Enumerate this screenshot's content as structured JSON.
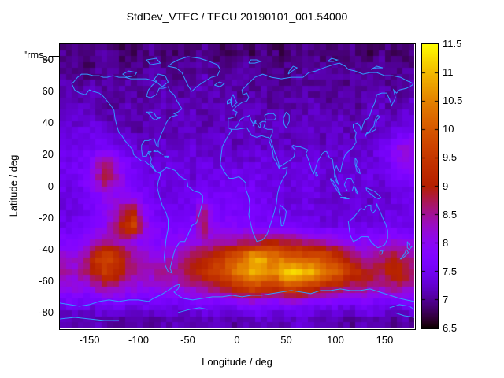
{
  "title": "StdDev_VTEC / TECU 20190101_001.54000",
  "key_label": "\"rms_",
  "axes": {
    "x": {
      "label": "Longitude / deg",
      "range": [
        -180,
        180
      ],
      "ticks": [
        -150,
        -100,
        -50,
        0,
        50,
        100,
        150
      ]
    },
    "y": {
      "label": "Latitude / deg",
      "range": [
        -90,
        90
      ],
      "ticks": [
        80,
        60,
        40,
        20,
        0,
        -20,
        -40,
        -60,
        -80
      ]
    }
  },
  "colorbar": {
    "range": [
      6.5,
      11.5
    ],
    "ticks": [
      6.5,
      7,
      7.5,
      8,
      8.5,
      9,
      9.5,
      10,
      10.5,
      11,
      11.5
    ],
    "palette": "gnuplot-default-pm3d (black-violet-red-orange-yellow)"
  },
  "colors": {
    "coastline": "#3399ff",
    "frame": "#000000",
    "background": "#ffffff",
    "text": "#000000"
  },
  "chart_data": {
    "type": "heatmap",
    "title": "StdDev_VTEC / TECU 20190101_001.54000",
    "xlabel": "Longitude / deg",
    "ylabel": "Latitude / deg",
    "xlim": [
      -180,
      180
    ],
    "ylim": [
      -90,
      90
    ],
    "zlim": [
      6.5,
      11.5
    ],
    "units": "TECU",
    "grid_on": false,
    "legend_position": "colorbar-right",
    "lon_centers": [
      -175,
      -165,
      -155,
      -145,
      -135,
      -125,
      -115,
      -105,
      -95,
      -85,
      -75,
      -65,
      -55,
      -45,
      -35,
      -25,
      -15,
      -5,
      5,
      15,
      25,
      35,
      45,
      55,
      65,
      75,
      85,
      95,
      105,
      115,
      125,
      135,
      145,
      155,
      165,
      175
    ],
    "lat_centers": [
      85,
      75,
      65,
      55,
      45,
      35,
      25,
      15,
      5,
      -5,
      -15,
      -25,
      -35,
      -45,
      -55,
      -65,
      -75,
      -85
    ],
    "values": [
      [
        7.0,
        6.9,
        6.8,
        6.9,
        7.0,
        6.9,
        6.8,
        6.8,
        6.9,
        7.0,
        6.9,
        6.8,
        6.9,
        6.9,
        7.0,
        6.9,
        6.8,
        6.9,
        6.9,
        6.8,
        7.0,
        6.9,
        6.8,
        6.9,
        7.0,
        6.9,
        6.9,
        6.8,
        6.9,
        7.0,
        6.9,
        6.8,
        6.9,
        6.9,
        6.8,
        6.9
      ],
      [
        7.0,
        7.0,
        6.9,
        6.9,
        7.1,
        7.0,
        6.9,
        6.9,
        7.0,
        7.1,
        7.0,
        6.9,
        7.0,
        7.0,
        7.1,
        7.0,
        6.9,
        7.0,
        7.1,
        7.0,
        6.9,
        7.0,
        7.0,
        6.9,
        7.0,
        7.1,
        7.0,
        6.9,
        7.0,
        7.0,
        6.9,
        7.0,
        7.1,
        7.0,
        6.9,
        7.0
      ],
      [
        7.1,
        7.0,
        7.0,
        7.1,
        7.0,
        7.0,
        7.1,
        7.0,
        7.0,
        7.1,
        7.1,
        7.0,
        7.0,
        7.1,
        7.2,
        7.1,
        7.0,
        7.1,
        7.1,
        7.0,
        7.0,
        7.1,
        7.0,
        7.0,
        7.1,
        7.0,
        7.0,
        7.1,
        7.0,
        7.0,
        7.1,
        7.0,
        7.1,
        7.0,
        7.0,
        7.1
      ],
      [
        7.2,
        7.1,
        7.1,
        7.2,
        7.1,
        7.0,
        7.1,
        7.1,
        7.0,
        7.1,
        7.2,
        7.1,
        7.1,
        7.2,
        7.1,
        7.1,
        7.2,
        7.1,
        7.0,
        7.1,
        7.1,
        7.0,
        7.1,
        7.1,
        7.0,
        7.1,
        7.1,
        7.0,
        7.1,
        7.1,
        7.0,
        7.1,
        7.2,
        7.1,
        7.1,
        7.2
      ],
      [
        7.3,
        7.3,
        7.2,
        7.2,
        7.1,
        7.1,
        7.2,
        7.1,
        7.1,
        7.2,
        7.1,
        7.1,
        7.2,
        7.2,
        7.1,
        7.1,
        7.2,
        7.1,
        7.1,
        7.2,
        7.1,
        7.1,
        7.2,
        7.1,
        7.1,
        7.2,
        7.1,
        7.1,
        7.2,
        7.1,
        7.1,
        7.2,
        7.2,
        7.1,
        7.2,
        7.3
      ],
      [
        7.3,
        7.3,
        7.4,
        7.4,
        7.3,
        7.2,
        7.2,
        7.1,
        7.1,
        7.2,
        7.1,
        7.1,
        7.2,
        7.2,
        7.1,
        7.2,
        7.2,
        7.1,
        7.2,
        7.2,
        7.1,
        7.2,
        7.2,
        7.1,
        7.2,
        7.2,
        7.1,
        7.2,
        7.2,
        7.1,
        7.2,
        7.2,
        7.3,
        7.3,
        7.4,
        7.5
      ],
      [
        7.4,
        7.4,
        7.5,
        7.5,
        7.6,
        7.5,
        7.4,
        7.3,
        7.2,
        7.2,
        7.3,
        7.2,
        7.2,
        7.3,
        7.2,
        7.2,
        7.3,
        7.2,
        7.2,
        7.3,
        7.2,
        7.2,
        7.3,
        7.2,
        7.2,
        7.3,
        7.2,
        7.2,
        7.3,
        7.2,
        7.2,
        7.3,
        7.4,
        7.7,
        8.1,
        8.2
      ],
      [
        7.5,
        7.5,
        7.6,
        8.0,
        8.6,
        8.3,
        7.8,
        7.5,
        7.4,
        7.3,
        7.3,
        7.4,
        7.3,
        7.3,
        7.4,
        7.3,
        7.3,
        7.4,
        7.3,
        7.3,
        7.4,
        7.3,
        7.3,
        7.4,
        7.3,
        7.3,
        7.4,
        7.3,
        7.3,
        7.4,
        7.3,
        7.3,
        7.4,
        7.6,
        8.0,
        8.0
      ],
      [
        7.5,
        7.5,
        7.7,
        8.2,
        8.9,
        8.4,
        7.9,
        7.6,
        7.4,
        7.4,
        7.4,
        7.4,
        7.4,
        7.3,
        7.4,
        7.4,
        7.5,
        7.5,
        7.5,
        7.5,
        7.4,
        7.4,
        7.4,
        7.3,
        7.4,
        7.4,
        7.3,
        7.3,
        7.4,
        7.3,
        7.3,
        7.4,
        7.3,
        7.4,
        7.6,
        7.7
      ],
      [
        7.4,
        7.4,
        7.5,
        7.8,
        8.0,
        8.0,
        7.9,
        7.8,
        7.6,
        7.5,
        7.4,
        7.4,
        7.5,
        7.4,
        7.5,
        7.5,
        7.6,
        7.6,
        7.5,
        7.6,
        7.5,
        7.4,
        7.4,
        7.3,
        7.4,
        7.4,
        7.3,
        7.3,
        7.2,
        7.3,
        7.3,
        7.2,
        7.3,
        7.3,
        7.4,
        7.4
      ],
      [
        7.4,
        7.4,
        7.5,
        7.6,
        7.9,
        8.2,
        8.6,
        8.9,
        7.9,
        7.6,
        7.5,
        7.5,
        7.5,
        7.6,
        8.6,
        7.8,
        7.6,
        7.6,
        7.6,
        7.6,
        7.5,
        7.5,
        7.4,
        7.4,
        7.4,
        7.4,
        7.3,
        7.3,
        7.3,
        7.3,
        7.3,
        7.3,
        7.3,
        7.4,
        7.4,
        7.4
      ],
      [
        7.5,
        7.5,
        7.6,
        7.7,
        8.0,
        8.5,
        9.3,
        9.7,
        8.3,
        7.8,
        7.7,
        7.7,
        7.7,
        7.8,
        8.9,
        8.0,
        7.8,
        7.8,
        7.8,
        7.8,
        7.7,
        7.7,
        7.6,
        7.6,
        7.5,
        7.5,
        7.4,
        7.4,
        7.4,
        7.4,
        7.4,
        7.4,
        7.4,
        7.5,
        7.5,
        7.5
      ],
      [
        7.8,
        7.8,
        7.9,
        8.3,
        8.6,
        8.5,
        8.3,
        8.1,
        7.9,
        7.8,
        7.8,
        7.9,
        8.0,
        8.1,
        8.2,
        8.2,
        8.3,
        8.4,
        8.5,
        8.6,
        8.8,
        8.9,
        8.8,
        8.7,
        8.6,
        8.5,
        8.4,
        8.2,
        8.1,
        7.9,
        7.9,
        7.9,
        8.0,
        8.1,
        8.1,
        8.0
      ],
      [
        8.2,
        8.2,
        8.4,
        9.4,
        9.8,
        9.6,
        9.0,
        8.5,
        8.3,
        8.2,
        8.2,
        8.3,
        8.6,
        8.8,
        9.0,
        9.3,
        9.6,
        10.0,
        10.3,
        10.9,
        11.0,
        10.4,
        10.3,
        10.2,
        10.0,
        10.0,
        9.9,
        9.7,
        9.4,
        8.8,
        8.4,
        8.3,
        8.6,
        8.9,
        8.8,
        8.5
      ],
      [
        8.4,
        8.3,
        8.6,
        9.0,
        9.5,
        9.3,
        8.8,
        8.5,
        8.3,
        8.4,
        8.5,
        8.5,
        8.7,
        9.0,
        9.4,
        9.6,
        9.8,
        10.2,
        10.5,
        10.9,
        10.8,
        10.5,
        11.0,
        11.3,
        11.2,
        11.0,
        10.5,
        10.2,
        9.9,
        9.4,
        9.2,
        9.0,
        8.8,
        9.1,
        9.2,
        8.8
      ],
      [
        8.0,
        8.1,
        7.9,
        8.2,
        8.5,
        8.4,
        8.2,
        8.1,
        8.0,
        8.0,
        8.1,
        8.1,
        8.2,
        8.3,
        8.4,
        8.6,
        8.8,
        9.2,
        9.5,
        9.6,
        9.4,
        9.3,
        9.5,
        9.7,
        9.5,
        9.3,
        9.0,
        8.8,
        8.7,
        8.5,
        8.6,
        8.4,
        8.3,
        8.5,
        8.4,
        8.2
      ],
      [
        7.5,
        7.6,
        7.5,
        7.4,
        7.5,
        7.6,
        7.5,
        7.4,
        7.5,
        7.6,
        7.5,
        7.4,
        7.5,
        7.6,
        7.7,
        7.6,
        7.5,
        7.6,
        7.7,
        7.8,
        7.7,
        7.6,
        7.7,
        7.8,
        7.7,
        7.6,
        7.5,
        7.6,
        7.5,
        7.4,
        7.5,
        7.6,
        7.5,
        7.4,
        7.5,
        7.6
      ],
      [
        7.1,
        7.0,
        7.1,
        7.2,
        7.1,
        7.0,
        7.1,
        7.2,
        7.1,
        7.0,
        7.1,
        7.2,
        7.1,
        7.0,
        7.1,
        7.2,
        7.1,
        7.0,
        7.1,
        7.2,
        7.3,
        7.2,
        7.1,
        7.2,
        7.3,
        7.2,
        7.1,
        7.2,
        7.1,
        7.0,
        7.1,
        7.2,
        7.1,
        7.0,
        7.1,
        7.0
      ]
    ]
  }
}
